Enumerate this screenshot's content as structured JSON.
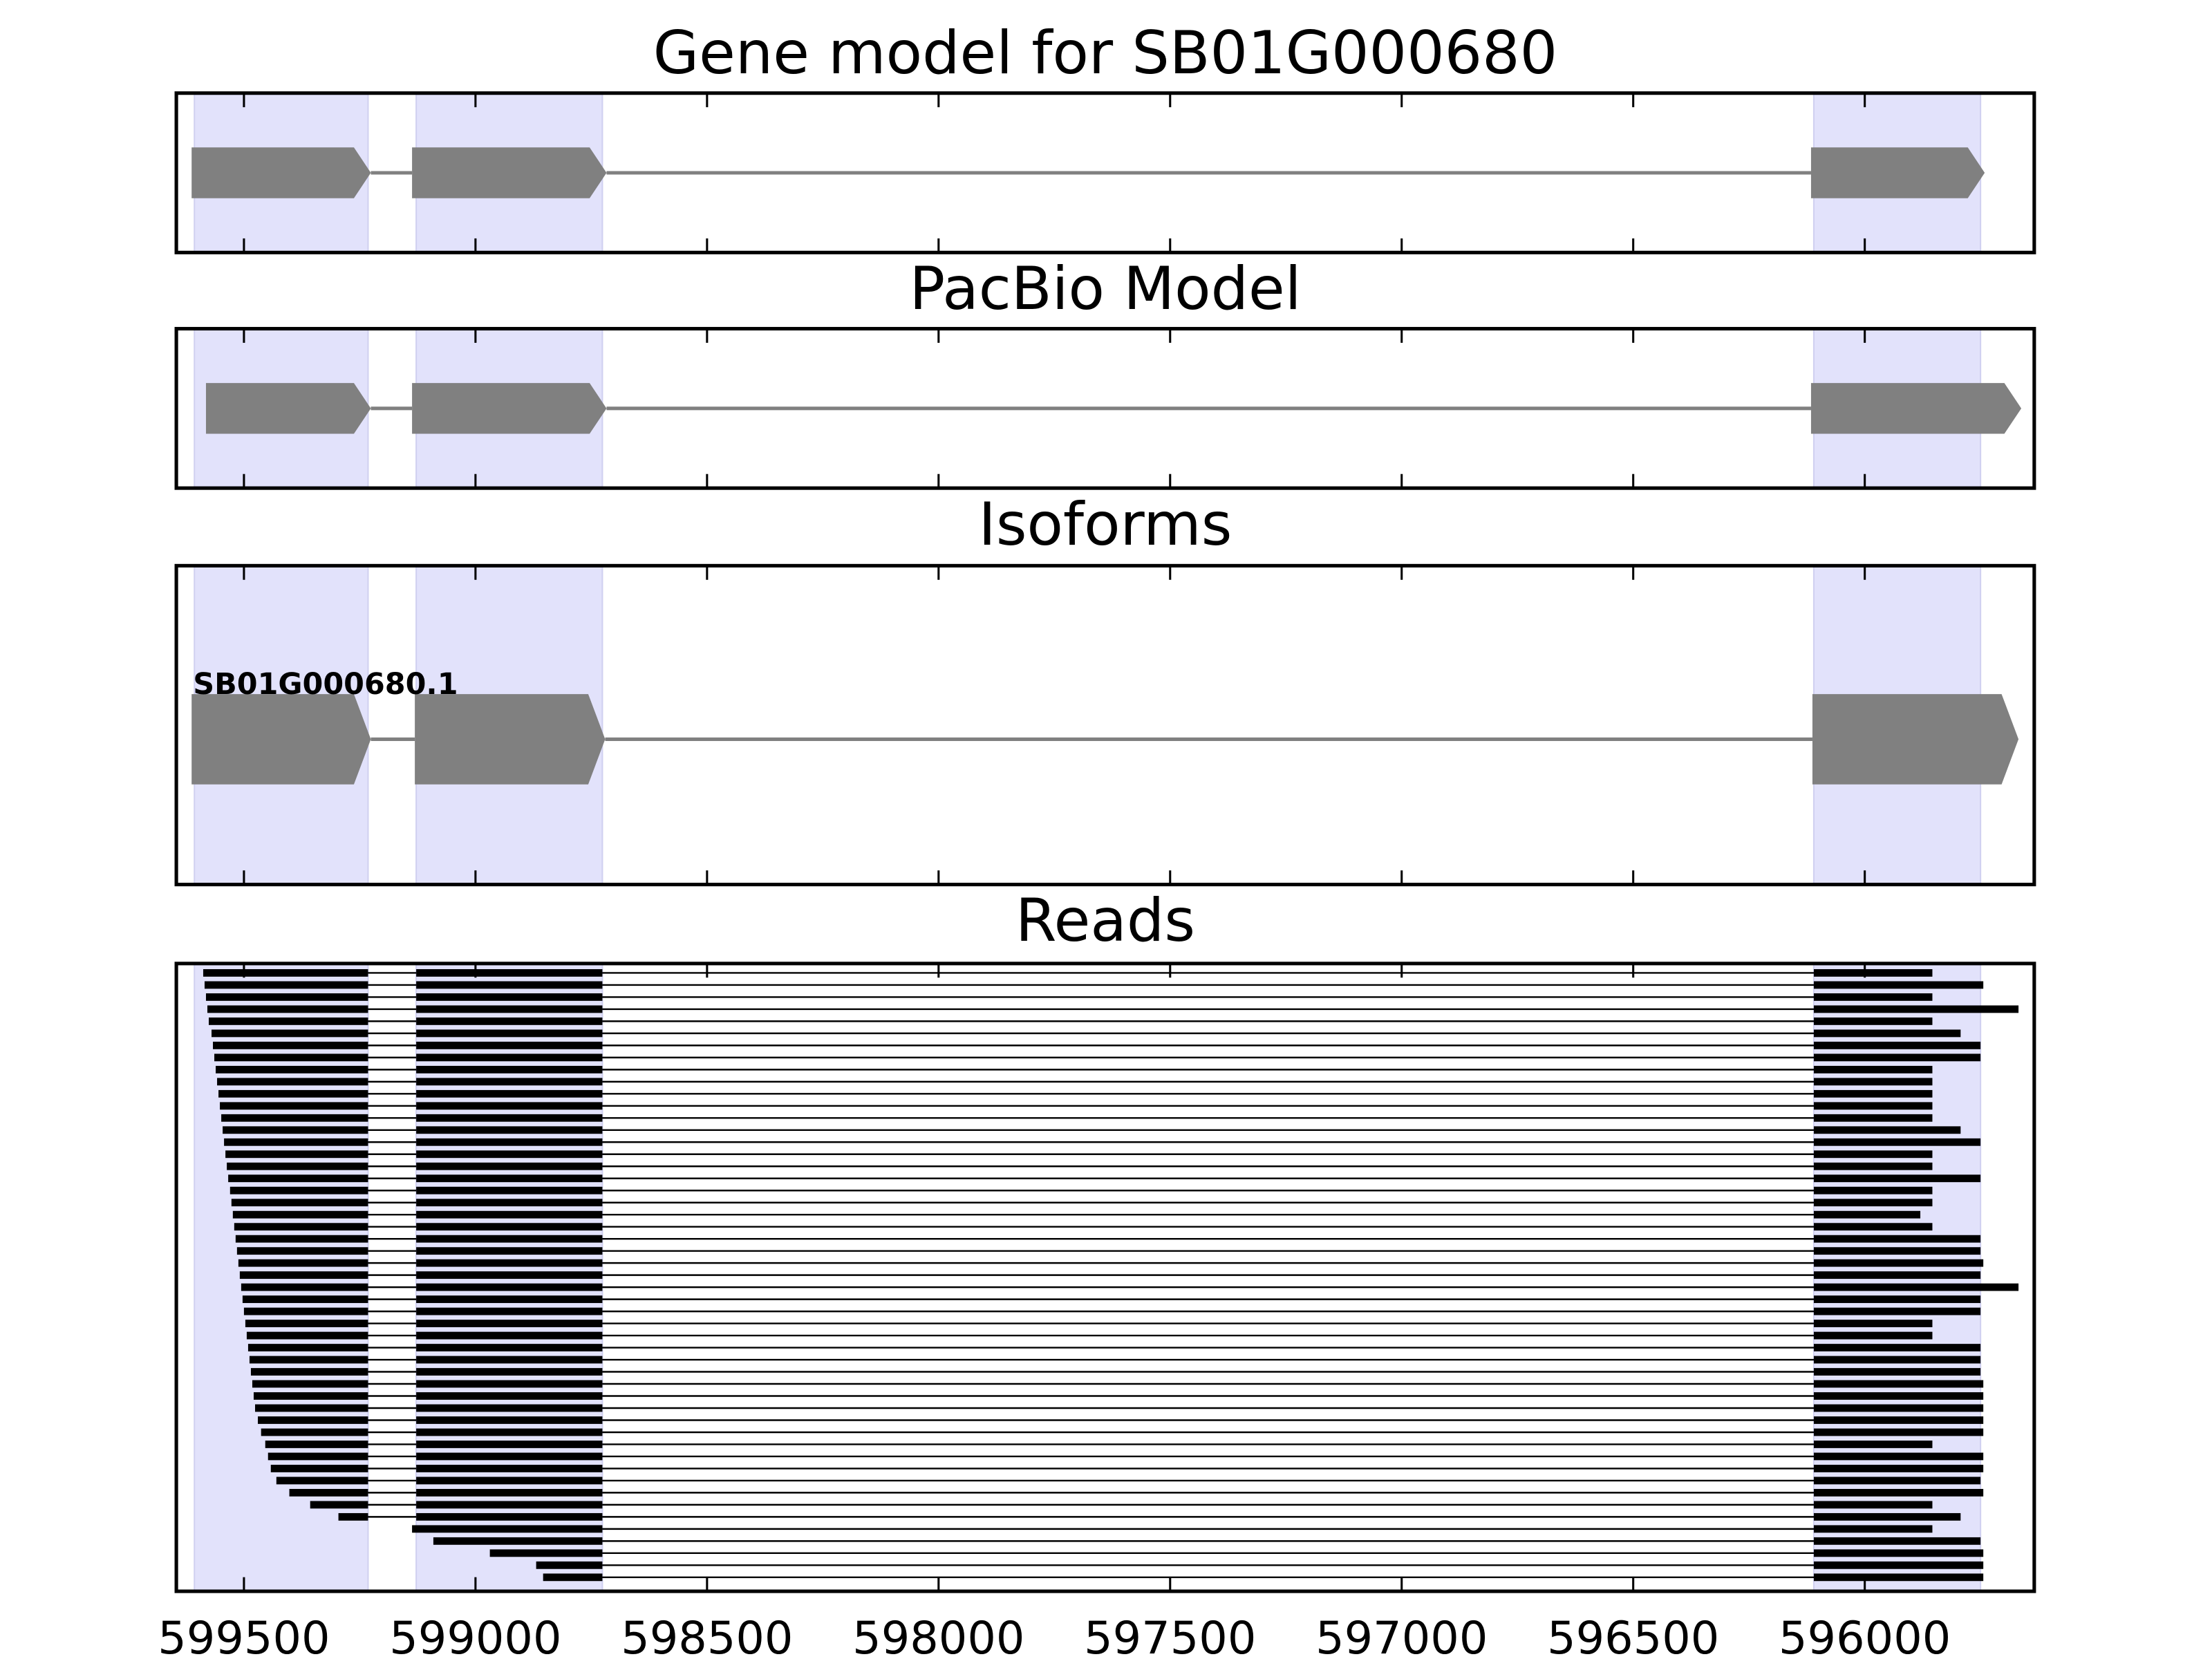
{
  "chart_data": {
    "type": "gene-tracks",
    "xlim": [
      599646,
      595634
    ],
    "xticks": [
      599500,
      599000,
      598500,
      598000,
      597500,
      597000,
      596500,
      596000
    ],
    "exon_regions": [
      {
        "start": 599607,
        "end": 599232
      },
      {
        "start": 599128,
        "end": 598726
      },
      {
        "start": 596110,
        "end": 595750
      }
    ],
    "panels": [
      {
        "title": "Gene model for SB01G000680",
        "features": [
          {
            "start": 599613,
            "end": 599226
          },
          {
            "start": 599137,
            "end": 598717
          },
          {
            "start": 596116,
            "end": 595741
          }
        ]
      },
      {
        "title": "PacBio Model",
        "features": [
          {
            "start": 599582,
            "end": 599226
          },
          {
            "start": 599137,
            "end": 598717
          },
          {
            "start": 596116,
            "end": 595662
          }
        ]
      },
      {
        "title": "Isoforms",
        "label": "SB01G000680.1",
        "features": [
          {
            "start": 599613,
            "end": 599226
          },
          {
            "start": 599131,
            "end": 598720
          },
          {
            "start": 596113,
            "end": 595668
          }
        ]
      }
    ],
    "reads": {
      "title": "Reads",
      "starts": [
        599588,
        599585,
        599582,
        599579,
        599576,
        599570,
        599567,
        599564,
        599561,
        599558,
        599555,
        599552,
        599549,
        599546,
        599543,
        599540,
        599537,
        599534,
        599530,
        599527,
        599524,
        599521,
        599518,
        599515,
        599512,
        599509,
        599506,
        599503,
        599500,
        599497,
        599494,
        599491,
        599488,
        599485,
        599482,
        599479,
        599476,
        599470,
        599463,
        599454,
        599448,
        599442,
        599430,
        599402,
        599357,
        599296,
        599137,
        599091,
        598969,
        598869,
        598854
      ],
      "ends": [
        595854,
        595744,
        595854,
        595668,
        595854,
        595793,
        595750,
        595750,
        595854,
        595854,
        595854,
        595854,
        595854,
        595793,
        595750,
        595854,
        595854,
        595750,
        595854,
        595854,
        595880,
        595854,
        595750,
        595750,
        595744,
        595750,
        595668,
        595750,
        595750,
        595854,
        595854,
        595750,
        595750,
        595750,
        595744,
        595744,
        595744,
        595744,
        595744,
        595854,
        595744,
        595744,
        595750,
        595744,
        595854,
        595793,
        595854,
        595750,
        595744,
        595744,
        595744
      ]
    }
  }
}
